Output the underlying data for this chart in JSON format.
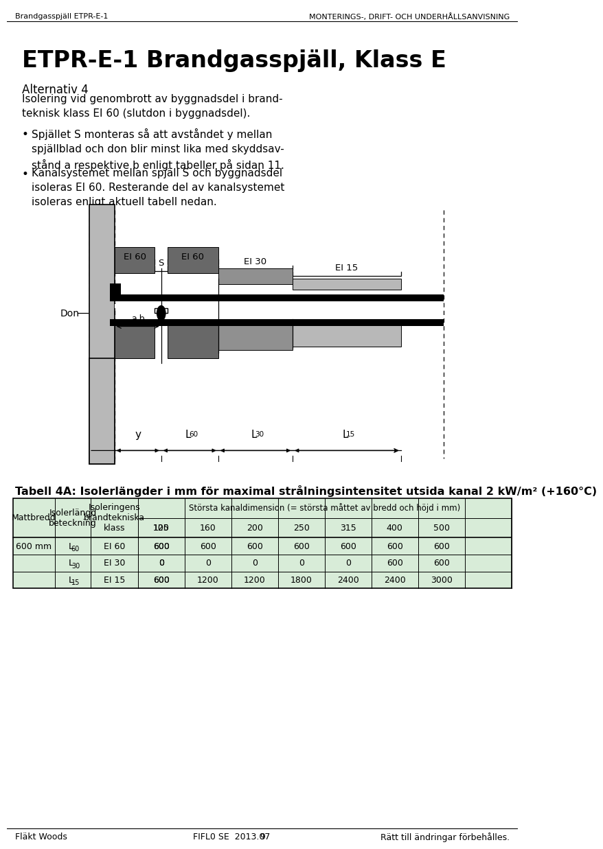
{
  "header_left": "Brandgasspjäll ETPR-E-1",
  "header_right": "MONTERINGS-, DRIFT- OCH UNDERHÅLLSANVISNING",
  "title": "ETPR-E-1 Brandgasspjäll, Klass E",
  "subtitle": "Alternativ 4",
  "subtitle2": "Isolering vid genombrott av byggnadsdel i brand-\nteknisk klass EI 60 (slutdon i byggnadsdel).",
  "bullet1": "Spjället S monteras så att avståndet y mellan\nspjällblad och don blir minst lika med skyddsav-\nstånd a respektive b enligt tabeller på sidan 11.",
  "bullet2": "Kanalsystemet mellan spjäll S och byggnadsdel\nisoleras EI 60. Resterande del av kanalsystemet\nisoleras enligt aktuell tabell nedan.",
  "table_title": "Tabell 4A: Isolerlängder i mm för maximal strålningsintensitet utsida kanal 2 kW/m² (+160°C)",
  "col_subheader": "Största kanaldimension (= största måttet av bredd och höjd i mm)",
  "col1_header": "Mattbredd",
  "col2_header": "Isolerlängd\nbeteckning",
  "col3_header": "Isoleringens\nbrandtekniska\nklass",
  "data_col_headers": [
    "100",
    "125",
    "160",
    "200",
    "250",
    "315",
    "400",
    "500"
  ],
  "rows": [
    [
      "600 mm",
      "L",
      "60",
      "EI 60",
      "600",
      "600",
      "600",
      "600",
      "600",
      "600",
      "600",
      "600"
    ],
    [
      "",
      "L",
      "30",
      "EI 30",
      "0",
      "0",
      "0",
      "0",
      "0",
      "0",
      "600",
      "600"
    ],
    [
      "",
      "L",
      "15",
      "EI 15",
      "600",
      "600",
      "1200",
      "1200",
      "1800",
      "2400",
      "2400",
      "3000"
    ]
  ],
  "footer_left": "Fläkt Woods",
  "footer_center": "FIFL0 SE  2013.07",
  "footer_page": "9",
  "footer_right": "Rätt till ändringar förbehålles.",
  "white": "#ffffff",
  "gray_light": "#b8b8b8",
  "gray_medium": "#909090",
  "gray_dark": "#686868",
  "black": "#000000",
  "table_bg": "#d8ecd8"
}
